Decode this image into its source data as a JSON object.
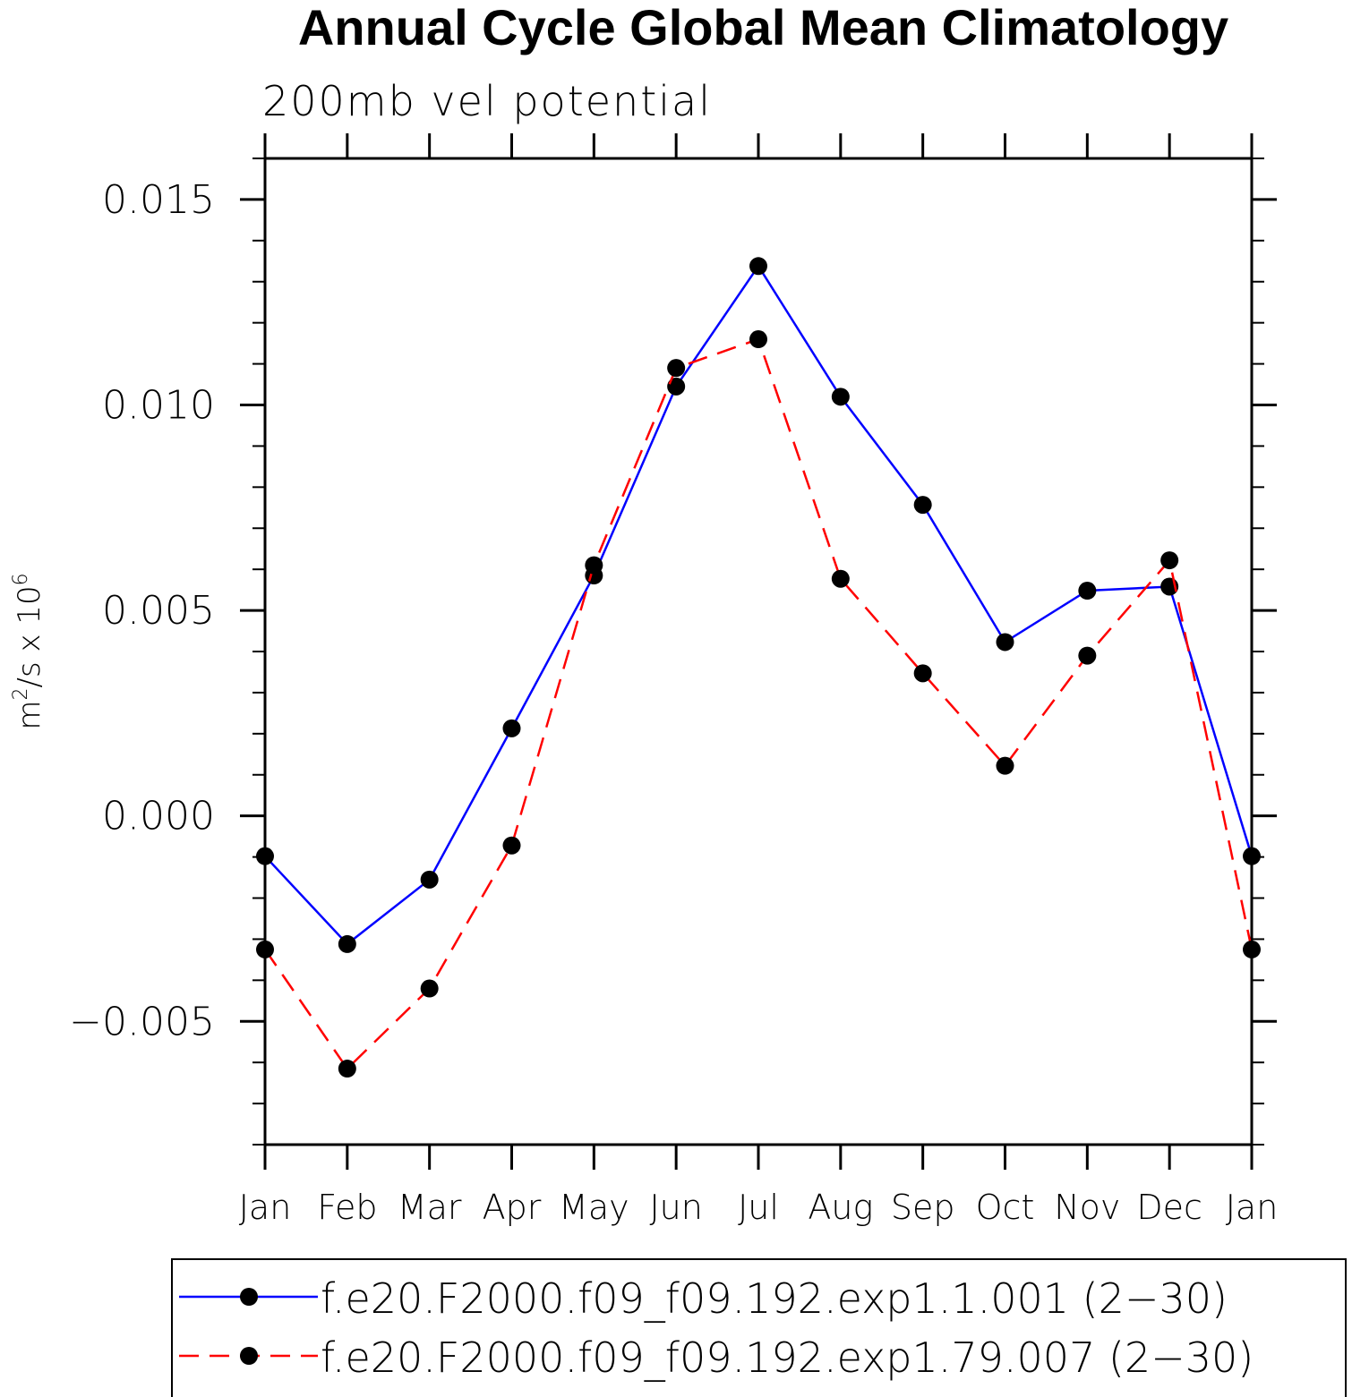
{
  "chart_data": {
    "type": "line",
    "title": "Annual Cycle Global Mean Climatology",
    "subtitle": "200mb vel potential",
    "ylabel_base": "m",
    "ylabel_sup1": "2",
    "ylabel_mid": "/s x 10",
    "ylabel_sup2": "6",
    "categories": [
      "Jan",
      "Feb",
      "Mar",
      "Apr",
      "May",
      "Jun",
      "Jul",
      "Aug",
      "Sep",
      "Oct",
      "Nov",
      "Dec",
      "Jan"
    ],
    "yticks": [
      -0.005,
      0.0,
      0.005,
      0.01,
      0.015
    ],
    "ytick_labels": [
      "−0.005",
      "0.000",
      "0.005",
      "0.010",
      "0.015"
    ],
    "ylim": [
      -0.008,
      0.016
    ],
    "grid": false,
    "legend_position": "bottom",
    "series": [
      {
        "name": "f.e20.F2000.f09_f09.192.exp1.1.001 (2−30)",
        "color": "#0000ff",
        "dash": "solid",
        "marker": "filled-circle",
        "values": [
          -0.00098,
          -0.00312,
          -0.00155,
          0.00213,
          0.00585,
          0.01045,
          0.01338,
          0.0102,
          0.00757,
          0.00423,
          0.00548,
          0.00558,
          -0.00098
        ]
      },
      {
        "name": "f.e20.F2000.f09_f09.192.exp1.79.007 (2−30)",
        "color": "#ff0000",
        "dash": "dashed",
        "marker": "filled-circle",
        "values": [
          -0.00325,
          -0.00615,
          -0.0042,
          -0.00072,
          0.0061,
          0.0109,
          0.0116,
          0.00577,
          0.00347,
          0.00122,
          0.0039,
          0.00622,
          -0.00325
        ]
      }
    ]
  }
}
